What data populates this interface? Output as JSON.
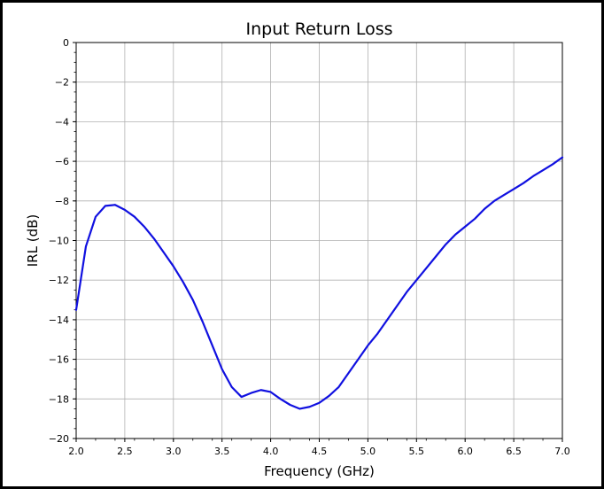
{
  "chart_data": {
    "type": "line",
    "title": "Input Return Loss",
    "xlabel": "Frequency (GHz)",
    "ylabel": "IRL (dB)",
    "xlim": [
      2.0,
      7.0
    ],
    "ylim": [
      -20,
      0
    ],
    "xticks": [
      "2.0",
      "2.5",
      "3.0",
      "3.5",
      "4.0",
      "4.5",
      "5.0",
      "5.5",
      "6.0",
      "6.5",
      "7.0"
    ],
    "yticks": [
      "0",
      "−2",
      "−4",
      "−6",
      "−8",
      "−10",
      "−12",
      "−14",
      "−16",
      "−18",
      "−20"
    ],
    "grid": true,
    "line_color": "#1010e0",
    "series": [
      {
        "x": [
          2.0,
          2.1,
          2.2,
          2.3,
          2.4,
          2.5,
          2.6,
          2.7,
          2.8,
          2.9,
          3.0,
          3.1,
          3.2,
          3.3,
          3.4,
          3.5,
          3.6,
          3.7,
          3.8,
          3.9,
          4.0,
          4.1,
          4.2,
          4.3,
          4.4,
          4.5,
          4.6,
          4.7,
          4.8,
          4.9,
          5.0,
          5.1,
          5.2,
          5.3,
          5.4,
          5.5,
          5.6,
          5.7,
          5.8,
          5.9,
          6.0,
          6.1,
          6.2,
          6.3,
          6.4,
          6.5,
          6.6,
          6.7,
          6.8,
          6.9,
          7.0
        ],
        "y": [
          -13.5,
          -10.3,
          -8.8,
          -8.25,
          -8.2,
          -8.45,
          -8.8,
          -9.3,
          -9.9,
          -10.6,
          -11.3,
          -12.1,
          -13.0,
          -14.1,
          -15.3,
          -16.5,
          -17.4,
          -17.9,
          -17.7,
          -17.55,
          -17.65,
          -18.0,
          -18.3,
          -18.5,
          -18.4,
          -18.2,
          -17.85,
          -17.4,
          -16.7,
          -16.0,
          -15.3,
          -14.7,
          -14.0,
          -13.3,
          -12.6,
          -12.0,
          -11.4,
          -10.8,
          -10.2,
          -9.7,
          -9.3,
          -8.9,
          -8.4,
          -8.0,
          -7.7,
          -7.4,
          -7.1,
          -6.75,
          -6.45,
          -6.15,
          -5.8
        ]
      }
    ]
  }
}
